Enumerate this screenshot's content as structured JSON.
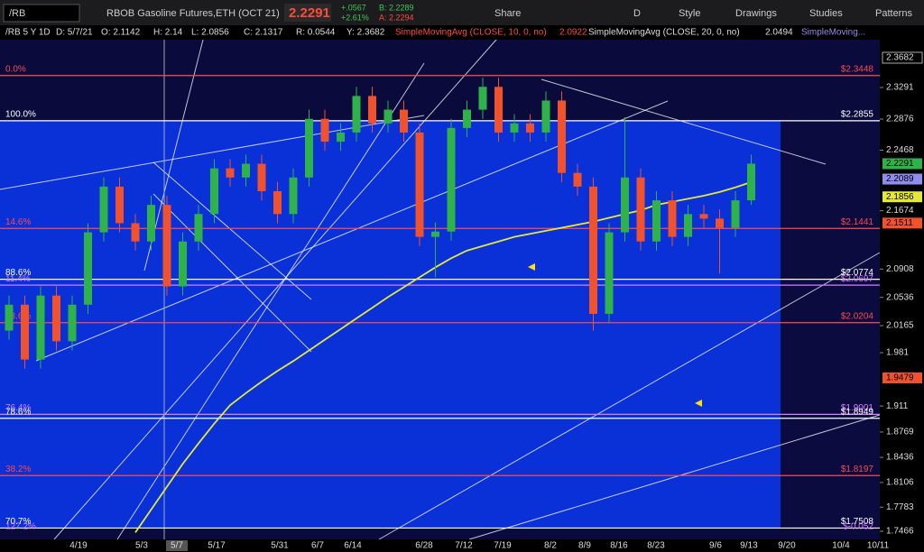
{
  "toolbar": {
    "symbol": "/RB",
    "instrument": "RBOB Gasoline Futures,ETH (OCT 21)",
    "last": "2.2291",
    "change": "+.0567",
    "change_pct": "+2.61%",
    "bid": "B: 2.2289",
    "ask": "A: 2.2294",
    "buttons": [
      "Share",
      "D",
      "Style",
      "Drawings",
      "Studies",
      "Patterns"
    ]
  },
  "info_line": {
    "chart": "/RB 5 Y 1D",
    "date": "D: 5/7/21",
    "open": "O: 2.1142",
    "high": "H: 2.14",
    "low": "L: 2.0856",
    "close": "C: 2.1317",
    "range": "R: 0.0544",
    "y": "Y: 2.3682",
    "study1": "SimpleMovingAvg (CLOSE, 10, 0, no)",
    "study1_value": "2.0922",
    "study2": "SimpleMovingAvg (CLOSE, 20, 0, no)",
    "study2_value": "2.0494",
    "study3": "SimpleMoving..."
  },
  "chart_data": {
    "type": "candlestick",
    "ylim": [
      1.7466,
      2.3682
    ],
    "yticks": [
      2.3291,
      2.2876,
      2.2468,
      2.1674,
      2.0908,
      2.0536,
      2.0165,
      1.981,
      1.911,
      1.8769,
      1.8436,
      1.8106,
      1.7783,
      1.7466
    ],
    "x_labels": [
      "4/19",
      "5/3",
      "5/7",
      "5/17",
      "5/31",
      "6/7",
      "6/14",
      "6/28",
      "7/12",
      "7/19",
      "8/2",
      "8/9",
      "8/16",
      "8/23",
      "9/6",
      "9/13",
      "9/20",
      "10/4",
      "10/11"
    ],
    "up_color": "#2fb24a",
    "down_color": "#f0522e",
    "candles": [
      [
        2.01,
        2.056,
        1.998,
        2.044
      ],
      [
        2.044,
        2.056,
        1.96,
        1.972
      ],
      [
        1.972,
        2.068,
        1.96,
        2.056
      ],
      [
        2.056,
        2.068,
        1.984,
        1.996
      ],
      [
        1.996,
        2.056,
        1.984,
        2.044
      ],
      [
        2.044,
        2.151,
        2.032,
        2.139
      ],
      [
        2.139,
        2.211,
        2.127,
        2.199
      ],
      [
        2.199,
        2.211,
        2.139,
        2.151
      ],
      [
        2.151,
        2.163,
        2.115,
        2.127
      ],
      [
        2.127,
        2.187,
        2.115,
        2.175
      ],
      [
        2.175,
        2.187,
        2.056,
        2.068
      ],
      [
        2.068,
        2.139,
        2.056,
        2.127
      ],
      [
        2.127,
        2.175,
        2.115,
        2.163
      ],
      [
        2.163,
        2.235,
        2.151,
        2.223
      ],
      [
        2.223,
        2.235,
        2.199,
        2.211
      ],
      [
        2.211,
        2.241,
        2.199,
        2.229
      ],
      [
        2.229,
        2.241,
        2.181,
        2.193
      ],
      [
        2.193,
        2.205,
        2.151,
        2.163
      ],
      [
        2.163,
        2.223,
        2.151,
        2.211
      ],
      [
        2.211,
        2.3,
        2.199,
        2.288
      ],
      [
        2.288,
        2.3,
        2.246,
        2.258
      ],
      [
        2.258,
        2.282,
        2.246,
        2.27
      ],
      [
        2.27,
        2.33,
        2.258,
        2.318
      ],
      [
        2.318,
        2.33,
        2.27,
        2.282
      ],
      [
        2.282,
        2.312,
        2.27,
        2.3
      ],
      [
        2.3,
        2.312,
        2.258,
        2.27
      ],
      [
        2.27,
        2.282,
        2.121,
        2.133
      ],
      [
        2.133,
        2.152,
        2.08,
        2.14
      ],
      [
        2.14,
        2.288,
        2.128,
        2.276
      ],
      [
        2.276,
        2.312,
        2.264,
        2.3
      ],
      [
        2.3,
        2.342,
        2.288,
        2.33
      ],
      [
        2.33,
        2.342,
        2.258,
        2.27
      ],
      [
        2.27,
        2.294,
        2.258,
        2.282
      ],
      [
        2.282,
        2.294,
        2.258,
        2.27
      ],
      [
        2.27,
        2.324,
        2.258,
        2.312
      ],
      [
        2.312,
        2.324,
        2.205,
        2.217
      ],
      [
        2.217,
        2.229,
        2.187,
        2.199
      ],
      [
        2.199,
        2.211,
        2.01,
        2.032
      ],
      [
        2.032,
        2.151,
        2.02,
        2.139
      ],
      [
        2.139,
        2.29,
        2.127,
        2.211
      ],
      [
        2.211,
        2.223,
        2.115,
        2.127
      ],
      [
        2.127,
        2.193,
        2.115,
        2.181
      ],
      [
        2.181,
        2.193,
        2.121,
        2.133
      ],
      [
        2.133,
        2.175,
        2.121,
        2.163
      ],
      [
        2.163,
        2.175,
        2.145,
        2.157
      ],
      [
        2.157,
        2.169,
        2.085,
        2.145
      ],
      [
        2.145,
        2.193,
        2.133,
        2.181
      ],
      [
        2.181,
        2.241,
        2.175,
        2.2291
      ]
    ],
    "trend_line": {
      "color": "#e4e83a",
      "values": [
        null,
        null,
        null,
        null,
        null,
        null,
        null,
        null,
        1.745,
        1.775,
        1.805,
        1.835,
        1.862,
        1.888,
        1.912,
        1.928,
        1.943,
        1.957,
        1.97,
        1.984,
        1.998,
        2.012,
        2.026,
        2.04,
        2.054,
        2.067,
        2.08,
        2.093,
        2.105,
        2.115,
        2.121,
        2.127,
        2.133,
        2.137,
        2.141,
        2.145,
        2.149,
        2.153,
        2.158,
        2.163,
        2.168,
        2.175,
        2.179,
        2.183,
        2.187,
        2.192,
        2.198,
        2.205
      ]
    },
    "fib_levels": [
      {
        "pct": "0.0%",
        "label": "$2.3448",
        "value": 2.3448,
        "color": "#ff4a4a"
      },
      {
        "pct": "100.0%",
        "label": "$2.2855",
        "value": 2.2855,
        "color": "#ffffff"
      },
      {
        "pct": "14.6%",
        "label": "$2.1441",
        "value": 2.1441,
        "color": "#ff4a4a"
      },
      {
        "pct": "88.6%",
        "label": "$2.0774",
        "value": 2.0774,
        "color": "#ffffff"
      },
      {
        "pct": "11.4%",
        "label": "$2.0697",
        "value": 2.0697,
        "color": "#d080ff"
      },
      {
        "pct": "23.6%",
        "label": "$2.0204",
        "value": 2.0204,
        "color": "#ff4a4a"
      },
      {
        "pct": "76.4%",
        "label": "$1.9001",
        "value": 1.9001,
        "color": "#d080ff"
      },
      {
        "pct": "78.6%",
        "label": "$1.8949",
        "value": 1.8949,
        "color": "#ffffff"
      },
      {
        "pct": "38.2%",
        "label": "$1.8197",
        "value": 1.8197,
        "color": "#ff4a4a"
      },
      {
        "pct": "70.7%",
        "label": "$1.7508",
        "value": 1.7508,
        "color": "#ffffff"
      },
      {
        "pct": "127.2%",
        "label": "$-0.052",
        "color": "#d080ff"
      }
    ],
    "badges": [
      {
        "value": 2.2291,
        "color": "#2fb24a"
      },
      {
        "value": 2.2089,
        "color": "#8f8cf0"
      },
      {
        "value": 2.1856,
        "color": "#e4e83a"
      },
      {
        "value": 2.1511,
        "color": "#f0522e"
      },
      {
        "value": 1.9479,
        "color": "#f0522e"
      }
    ]
  }
}
